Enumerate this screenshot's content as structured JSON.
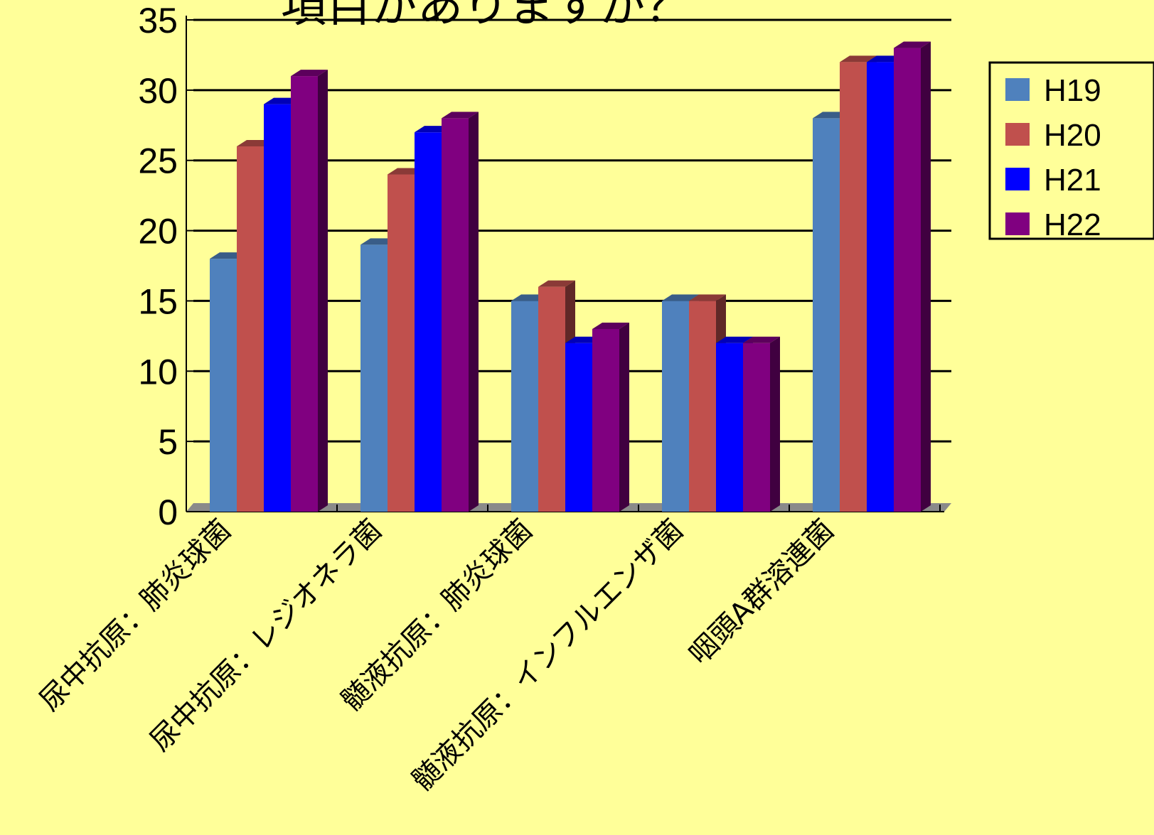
{
  "slide": {
    "title_fragment": "項目がありますか？"
  },
  "colors": {
    "background": "#ffff99",
    "axis": "#000000",
    "floor": "#8a8a8a"
  },
  "chart_data": {
    "type": "bar",
    "title": "",
    "xlabel": "",
    "ylabel": "",
    "ylim": [
      0,
      35
    ],
    "yticks": [
      0,
      5,
      10,
      15,
      20,
      25,
      30,
      35
    ],
    "grid": true,
    "legend_position": "right",
    "categories": [
      "尿中抗原：肺炎球菌",
      "尿中抗原：レジオネラ菌",
      "髄液抗原：肺炎球菌",
      "髄液抗原：インフルエンザ菌",
      "咽頭A群溶連菌"
    ],
    "series": [
      {
        "name": "H19",
        "color": "#4f81bd",
        "values": [
          18,
          19,
          15,
          15,
          28
        ]
      },
      {
        "name": "H20",
        "color": "#c0504d",
        "values": [
          26,
          24,
          16,
          15,
          32
        ]
      },
      {
        "name": "H21",
        "color": "#0000ff",
        "values": [
          29,
          27,
          12,
          12,
          32
        ]
      },
      {
        "name": "H22",
        "color": "#800080",
        "values": [
          31,
          28,
          13,
          12,
          33
        ]
      }
    ]
  }
}
